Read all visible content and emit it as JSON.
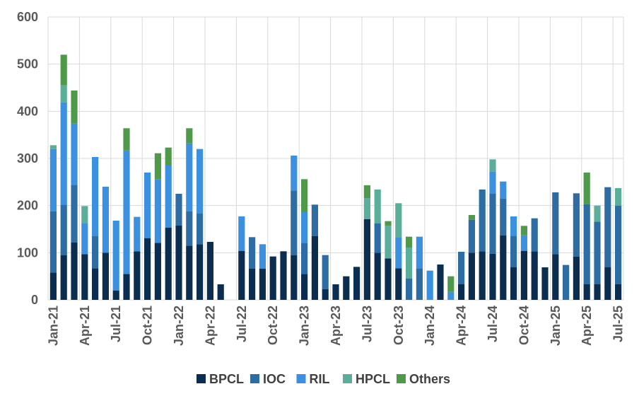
{
  "chart_data": {
    "type": "bar",
    "stacked": true,
    "title": "",
    "xlabel": "",
    "ylabel": "",
    "ylim": [
      0,
      600
    ],
    "yticks": [
      0,
      100,
      200,
      300,
      400,
      500,
      600
    ],
    "grid": true,
    "legend_position": "bottom",
    "categories": [
      "Jan-21",
      "Feb-21",
      "Mar-21",
      "Apr-21",
      "May-21",
      "Jun-21",
      "Jul-21",
      "Aug-21",
      "Sep-21",
      "Oct-21",
      "Nov-21",
      "Dec-21",
      "Jan-22",
      "Feb-22",
      "Mar-22",
      "Apr-22",
      "May-22",
      "Jun-22",
      "Jul-22",
      "Aug-22",
      "Sep-22",
      "Oct-22",
      "Nov-22",
      "Dec-22",
      "Jan-23",
      "Feb-23",
      "Mar-23",
      "Apr-23",
      "May-23",
      "Jun-23",
      "Jul-23",
      "Aug-23",
      "Sep-23",
      "Oct-23",
      "Nov-23",
      "Dec-23",
      "Jan-24",
      "Feb-24",
      "Mar-24",
      "Apr-24",
      "May-24",
      "Jun-24",
      "Jul-24",
      "Aug-24",
      "Sep-24",
      "Oct-24",
      "Nov-24",
      "Dec-24",
      "Jan-25",
      "Feb-25",
      "Mar-25",
      "Apr-25",
      "May-25",
      "Jun-25",
      "Jul-25"
    ],
    "x_tick_labels": [
      "Jan-21",
      "Apr-21",
      "Jul-21",
      "Oct-21",
      "Jan-22",
      "Apr-22",
      "Jul-22",
      "Oct-22",
      "Jan-23",
      "Apr-23",
      "Jul-23",
      "Oct-23",
      "Jan-24",
      "Apr-24",
      "Jul-24",
      "Oct-24",
      "Jan-25",
      "Apr-25",
      "Jul-25"
    ],
    "series": [
      {
        "name": "BPCL",
        "color": "#0b2d4f",
        "values": [
          58,
          95,
          122,
          97,
          67,
          100,
          20,
          55,
          103,
          131,
          121,
          153,
          158,
          115,
          118,
          123,
          33,
          0,
          104,
          66,
          66,
          92,
          103,
          95,
          55,
          135,
          23,
          33,
          50,
          70,
          171,
          100,
          88,
          67,
          0,
          0,
          0,
          75,
          0,
          33,
          100,
          103,
          98,
          137,
          69,
          104,
          103,
          69,
          97,
          0,
          92,
          33,
          33,
          69,
          33
        ]
      },
      {
        "name": "IOC",
        "color": "#2e6ca4",
        "values": [
          130,
          107,
          122,
          0,
          68,
          0,
          0,
          0,
          0,
          0,
          0,
          0,
          67,
          73,
          65,
          0,
          0,
          0,
          0,
          67,
          0,
          0,
          0,
          137,
          66,
          67,
          72,
          0,
          0,
          0,
          0,
          62,
          0,
          0,
          45,
          67,
          0,
          0,
          0,
          69,
          70,
          131,
          127,
          78,
          67,
          0,
          70,
          0,
          131,
          74,
          134,
          170,
          133,
          170,
          167
        ]
      },
      {
        "name": "RIL",
        "color": "#3b91e0",
        "values": [
          132,
          217,
          130,
          65,
          168,
          140,
          148,
          262,
          73,
          139,
          135,
          132,
          0,
          144,
          137,
          0,
          0,
          0,
          73,
          0,
          52,
          0,
          0,
          74,
          65,
          0,
          0,
          0,
          0,
          0,
          0,
          0,
          0,
          65,
          0,
          67,
          62,
          0,
          17,
          0,
          0,
          0,
          47,
          36,
          41,
          33,
          0,
          0,
          0,
          0,
          0,
          0,
          0,
          0,
          0
        ]
      },
      {
        "name": "HPCL",
        "color": "#5baf9a",
        "values": [
          8,
          36,
          0,
          37,
          0,
          0,
          0,
          0,
          0,
          0,
          0,
          0,
          0,
          0,
          0,
          0,
          0,
          0,
          0,
          0,
          0,
          0,
          0,
          0,
          0,
          0,
          0,
          0,
          0,
          0,
          45,
          72,
          69,
          73,
          66,
          0,
          0,
          0,
          0,
          0,
          0,
          0,
          26,
          0,
          0,
          0,
          0,
          0,
          0,
          0,
          0,
          0,
          34,
          0,
          37
        ]
      },
      {
        "name": "Others",
        "color": "#4f9a4a",
        "values": [
          0,
          65,
          70,
          0,
          0,
          0,
          0,
          47,
          0,
          0,
          55,
          38,
          0,
          32,
          0,
          0,
          0,
          0,
          0,
          0,
          0,
          0,
          0,
          0,
          70,
          0,
          0,
          0,
          0,
          0,
          27,
          0,
          10,
          0,
          23,
          0,
          0,
          0,
          33,
          0,
          10,
          0,
          0,
          0,
          0,
          20,
          0,
          0,
          0,
          0,
          0,
          67,
          0,
          0,
          0
        ]
      }
    ]
  }
}
